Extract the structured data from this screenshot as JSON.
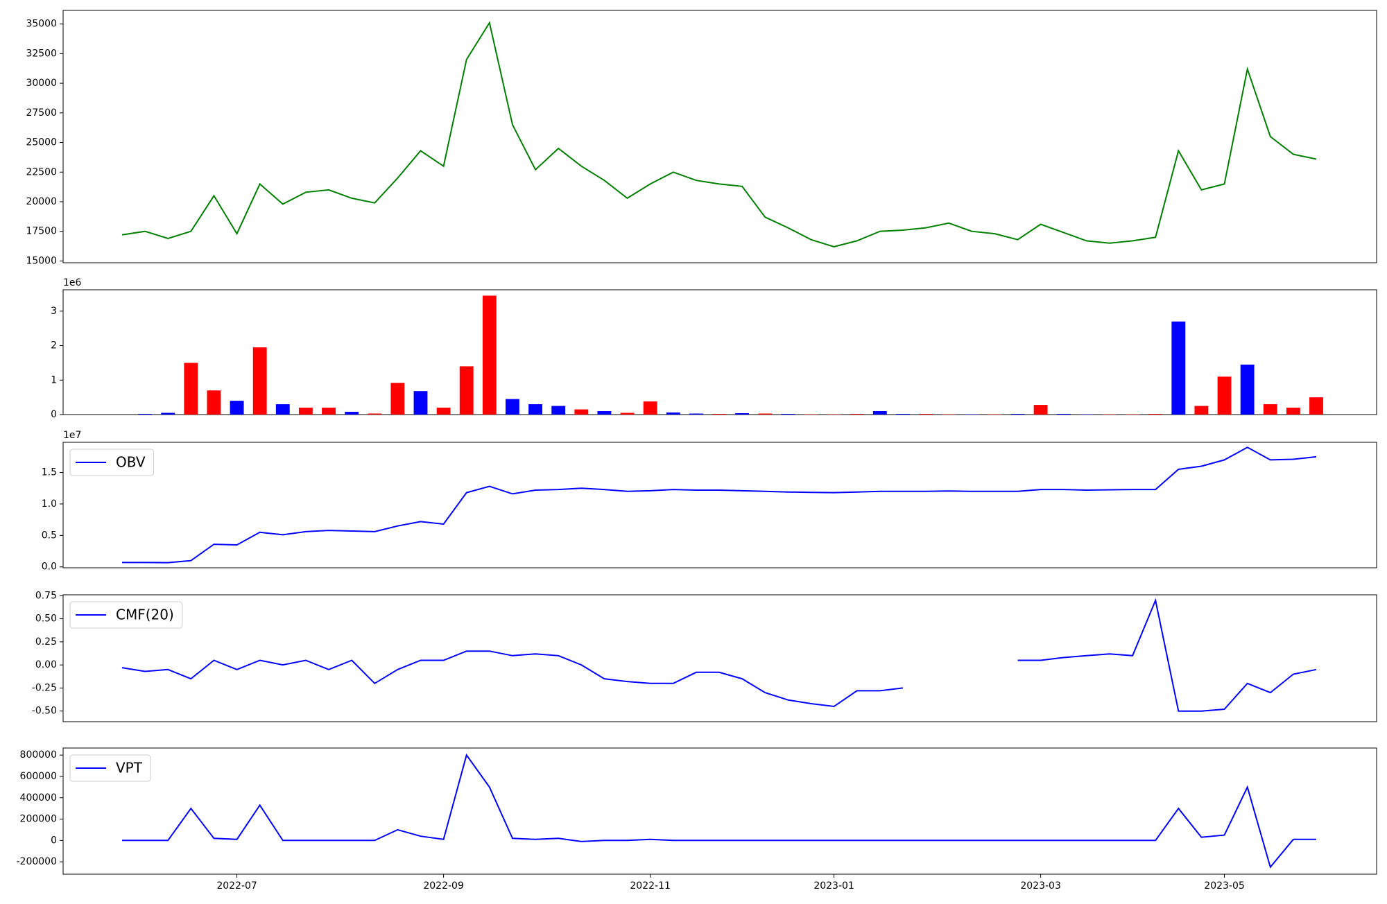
{
  "chart_data": [
    {
      "type": "line",
      "series": [
        {
          "color": "#008000",
          "values": [
            17200,
            17500,
            16900,
            17500,
            20500,
            17300,
            21500,
            19800,
            20800,
            21000,
            20300,
            19900,
            22000,
            24300,
            23000,
            32000,
            35100,
            26500,
            22700,
            24500,
            23000,
            21800,
            20300,
            21500,
            22500,
            21800,
            21500,
            21300,
            18700,
            17800,
            16800,
            16200,
            16700,
            17500,
            17600,
            17800,
            18200,
            17500,
            17300,
            16800,
            18100,
            17400,
            16700,
            16500,
            16700,
            17000,
            24300,
            21000,
            21500,
            31200,
            25500,
            24000,
            23600
          ]
        }
      ],
      "ylim": [
        14850,
        36150
      ],
      "yticks": [
        15000,
        17500,
        20000,
        22500,
        25000,
        27500,
        30000,
        32500,
        35000
      ]
    },
    {
      "type": "bar",
      "values": [
        0,
        20000,
        50000,
        1500000,
        700000,
        400000,
        1950000,
        300000,
        200000,
        200000,
        80000,
        30000,
        920000,
        680000,
        200000,
        1400000,
        3450000,
        450000,
        300000,
        250000,
        150000,
        100000,
        50000,
        380000,
        60000,
        30000,
        20000,
        40000,
        30000,
        20000,
        10000,
        10000,
        20000,
        100000,
        20000,
        20000,
        10000,
        10000,
        10000,
        20000,
        280000,
        20000,
        10000,
        10000,
        10000,
        20000,
        2700000,
        250000,
        1100000,
        1450000,
        300000,
        200000,
        500000
      ],
      "colors": [
        "#ff0000",
        "#0000ff",
        "#0000ff",
        "#ff0000",
        "#ff0000",
        "#0000ff",
        "#ff0000",
        "#0000ff",
        "#ff0000",
        "#ff0000",
        "#0000ff",
        "#ff0000",
        "#ff0000",
        "#0000ff",
        "#ff0000",
        "#ff0000",
        "#ff0000",
        "#0000ff",
        "#0000ff",
        "#0000ff",
        "#ff0000",
        "#0000ff",
        "#ff0000",
        "#ff0000",
        "#0000ff",
        "#0000ff",
        "#ff0000",
        "#0000ff",
        "#ff0000",
        "#0000ff",
        "#ff0000",
        "#ff0000",
        "#ff0000",
        "#0000ff",
        "#0000ff",
        "#ff0000",
        "#ff0000",
        "#0000ff",
        "#ff0000",
        "#0000ff",
        "#ff0000",
        "#0000ff",
        "#0000ff",
        "#ff0000",
        "#ff0000",
        "#ff0000",
        "#0000ff",
        "#ff0000",
        "#ff0000",
        "#0000ff",
        "#ff0000",
        "#ff0000",
        "#ff0000"
      ],
      "ylim": [
        0,
        3620000
      ],
      "yticks": [
        0,
        {
          "value": 1000000,
          "label": "1"
        },
        {
          "value": 2000000,
          "label": "2"
        },
        {
          "value": 3000000,
          "label": "3"
        }
      ],
      "offset_label": "1e6"
    },
    {
      "type": "line",
      "series": [
        {
          "name": "OBV",
          "color": "#0000ff",
          "values": [
            700000,
            700000,
            680000,
            1000000,
            3600000,
            3500000,
            5500000,
            5100000,
            5600000,
            5800000,
            5700000,
            5600000,
            6500000,
            7200000,
            6800000,
            11800000,
            12800000,
            11600000,
            12200000,
            12300000,
            12500000,
            12300000,
            12000000,
            12100000,
            12300000,
            12200000,
            12200000,
            12100000,
            12000000,
            11900000,
            11850000,
            11800000,
            11900000,
            12000000,
            12000000,
            12000000,
            12050000,
            12000000,
            12000000,
            12000000,
            12300000,
            12300000,
            12200000,
            12250000,
            12300000,
            12300000,
            15500000,
            16000000,
            17000000,
            19000000,
            17000000,
            17100000,
            17500000
          ]
        }
      ],
      "ylim": [
        -140000,
        19800000
      ],
      "yticks": [
        {
          "value": 0,
          "label": "0.0"
        },
        {
          "value": 5000000,
          "label": "0.5"
        },
        {
          "value": 10000000,
          "label": "1.0"
        },
        {
          "value": 15000000,
          "label": "1.5"
        }
      ],
      "offset_label": "1e7",
      "legend": "upper left"
    },
    {
      "type": "line",
      "series": [
        {
          "name": "CMF(20)",
          "color": "#0000ff",
          "values": [
            -0.03,
            -0.07,
            -0.05,
            -0.15,
            0.05,
            -0.05,
            0.05,
            0.0,
            0.05,
            -0.05,
            0.05,
            -0.2,
            -0.05,
            0.05,
            0.05,
            0.15,
            0.15,
            0.1,
            0.12,
            0.1,
            0.0,
            -0.15,
            -0.18,
            -0.2,
            -0.2,
            -0.08,
            -0.08,
            -0.15,
            -0.3,
            -0.38,
            -0.42,
            -0.45,
            -0.28,
            -0.28,
            -0.25,
            null,
            null,
            null,
            null,
            0.05,
            0.05,
            0.08,
            0.1,
            0.12,
            0.1,
            0.7,
            -0.5,
            -0.5,
            -0.48,
            -0.2,
            -0.3,
            -0.1,
            -0.05
          ]
        }
      ],
      "ylim": [
        -0.615,
        0.76
      ],
      "yticks": [
        {
          "value": -0.5,
          "label": "-0.50"
        },
        {
          "value": -0.25,
          "label": "-0.25"
        },
        {
          "value": 0,
          "label": "0.00"
        },
        {
          "value": 0.25,
          "label": "0.25"
        },
        {
          "value": 0.5,
          "label": "0.50"
        },
        {
          "value": 0.75,
          "label": "0.75"
        }
      ],
      "legend": "upper left"
    },
    {
      "type": "line",
      "categories": [
        null,
        null,
        null,
        null,
        null,
        "2022-07",
        null,
        null,
        null,
        null,
        null,
        null,
        null,
        null,
        "2022-09",
        null,
        null,
        null,
        null,
        null,
        null,
        null,
        null,
        "2022-11",
        null,
        null,
        null,
        null,
        null,
        null,
        null,
        "2023-01",
        null,
        null,
        null,
        null,
        null,
        null,
        null,
        null,
        "2023-03",
        null,
        null,
        null,
        null,
        null,
        null,
        null,
        "2023-05",
        null,
        null,
        null,
        null
      ],
      "series": [
        {
          "name": "VPT",
          "color": "#0000ff",
          "values": [
            0,
            0,
            0,
            300000,
            20000,
            10000,
            330000,
            0,
            0,
            0,
            0,
            0,
            100000,
            40000,
            10000,
            800000,
            500000,
            20000,
            10000,
            20000,
            -10000,
            0,
            0,
            10000,
            0,
            0,
            0,
            0,
            0,
            0,
            0,
            0,
            0,
            0,
            0,
            0,
            0,
            0,
            0,
            0,
            0,
            0,
            0,
            0,
            0,
            0,
            300000,
            30000,
            50000,
            500000,
            -250000,
            10000,
            10000
          ]
        }
      ],
      "ylim": [
        -316000,
        866000
      ],
      "yticks": [
        -200000,
        0,
        200000,
        400000,
        600000,
        800000
      ],
      "legend": "upper left"
    }
  ]
}
